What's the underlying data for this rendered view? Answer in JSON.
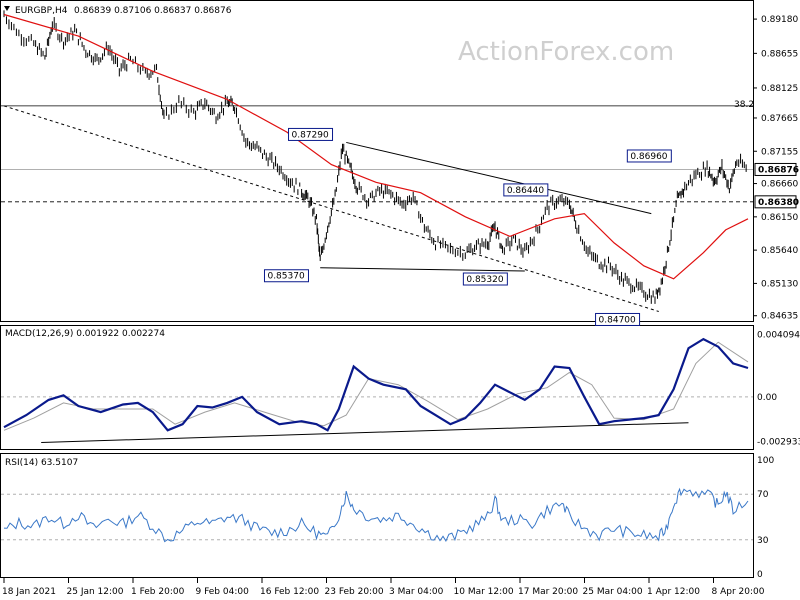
{
  "header": {
    "symbol": "EURGBP,H4",
    "ohlc": "0.86839 0.87106 0.86837 0.86876"
  },
  "watermark": "ActionForex.com",
  "colors": {
    "price": "#000000",
    "ma": "#e01010",
    "macd": "#0a1a8c",
    "signal": "#a0a0a0",
    "rsi": "#3a78c8",
    "label_border": "#0a1a8c"
  },
  "chart_data": [
    {
      "type": "candlestick",
      "title": "EURGBP,H4",
      "y_axis_ticks": [
        "0.89180",
        "0.88655",
        "0.88125",
        "0.87665",
        "0.87155",
        "0.86660",
        "0.86150",
        "0.85640",
        "0.85130",
        "0.84635"
      ],
      "ylim": [
        0.846,
        0.8935
      ],
      "current_price_label": "0.86876",
      "dashed_level_label": "0.86380",
      "x_tick_labels": [
        "18 Jan 2021",
        "25 Jan 12:00",
        "1 Feb 20:00",
        "9 Feb 04:00",
        "16 Feb 12:00",
        "23 Feb 20:00",
        "3 Mar 04:00",
        "10 Mar 12:00",
        "17 Mar 20:00",
        "25 Mar 04:00",
        "1 Apr 12:00",
        "8 Apr 20:00"
      ],
      "fib_label": "38.2",
      "fib_level": 0.8785,
      "annotations": [
        "0.87290",
        "0.85370",
        "0.86440",
        "0.85320",
        "0.84700",
        "0.86960"
      ],
      "annotation_points": [
        {
          "label": "0.87290",
          "t": 0.455,
          "price": 0.8729
        },
        {
          "label": "0.85370",
          "t": 0.42,
          "price": 0.8537
        },
        {
          "label": "0.86440",
          "t": 0.735,
          "price": 0.8644
        },
        {
          "label": "0.85320",
          "t": 0.69,
          "price": 0.8532
        },
        {
          "label": "0.84700",
          "t": 0.865,
          "price": 0.847
        },
        {
          "label": "0.86960",
          "t": 0.905,
          "price": 0.8696
        }
      ],
      "price_path": [
        [
          0.0,
          0.8925
        ],
        [
          0.02,
          0.8895
        ],
        [
          0.04,
          0.888
        ],
        [
          0.055,
          0.886
        ],
        [
          0.065,
          0.891
        ],
        [
          0.08,
          0.8885
        ],
        [
          0.095,
          0.89
        ],
        [
          0.11,
          0.887
        ],
        [
          0.125,
          0.8855
        ],
        [
          0.14,
          0.8875
        ],
        [
          0.155,
          0.884
        ],
        [
          0.17,
          0.8855
        ],
        [
          0.19,
          0.8835
        ],
        [
          0.205,
          0.884
        ],
        [
          0.215,
          0.8765
        ],
        [
          0.235,
          0.879
        ],
        [
          0.255,
          0.8775
        ],
        [
          0.27,
          0.879
        ],
        [
          0.285,
          0.877
        ],
        [
          0.3,
          0.879
        ],
        [
          0.31,
          0.8785
        ],
        [
          0.325,
          0.873
        ],
        [
          0.34,
          0.872
        ],
        [
          0.355,
          0.8705
        ],
        [
          0.37,
          0.869
        ],
        [
          0.385,
          0.867
        ],
        [
          0.4,
          0.8655
        ],
        [
          0.41,
          0.864
        ],
        [
          0.42,
          0.861
        ],
        [
          0.425,
          0.8548
        ],
        [
          0.435,
          0.86
        ],
        [
          0.445,
          0.8645
        ],
        [
          0.455,
          0.872
        ],
        [
          0.465,
          0.869
        ],
        [
          0.475,
          0.866
        ],
        [
          0.49,
          0.864
        ],
        [
          0.505,
          0.8655
        ],
        [
          0.52,
          0.865
        ],
        [
          0.535,
          0.8635
        ],
        [
          0.55,
          0.8645
        ],
        [
          0.565,
          0.86
        ],
        [
          0.58,
          0.8575
        ],
        [
          0.6,
          0.8565
        ],
        [
          0.62,
          0.856
        ],
        [
          0.635,
          0.857
        ],
        [
          0.65,
          0.8575
        ],
        [
          0.66,
          0.86
        ],
        [
          0.67,
          0.8565
        ],
        [
          0.685,
          0.858
        ],
        [
          0.7,
          0.856
        ],
        [
          0.715,
          0.859
        ],
        [
          0.73,
          0.863
        ],
        [
          0.745,
          0.864
        ],
        [
          0.76,
          0.8635
        ],
        [
          0.77,
          0.86
        ],
        [
          0.785,
          0.856
        ],
        [
          0.8,
          0.8545
        ],
        [
          0.815,
          0.854
        ],
        [
          0.83,
          0.852
        ],
        [
          0.845,
          0.851
        ],
        [
          0.86,
          0.85
        ],
        [
          0.875,
          0.849
        ],
        [
          0.885,
          0.852
        ],
        [
          0.895,
          0.858
        ],
        [
          0.905,
          0.864
        ],
        [
          0.915,
          0.866
        ],
        [
          0.93,
          0.868
        ],
        [
          0.945,
          0.869
        ],
        [
          0.955,
          0.867
        ],
        [
          0.965,
          0.869
        ],
        [
          0.975,
          0.866
        ],
        [
          0.985,
          0.87
        ],
        [
          1.0,
          0.8688
        ]
      ],
      "moving_average": [
        [
          0.0,
          0.8925
        ],
        [
          0.1,
          0.8892
        ],
        [
          0.2,
          0.8838
        ],
        [
          0.3,
          0.8795
        ],
        [
          0.38,
          0.8745
        ],
        [
          0.44,
          0.8695
        ],
        [
          0.5,
          0.8668
        ],
        [
          0.56,
          0.8652
        ],
        [
          0.62,
          0.8615
        ],
        [
          0.68,
          0.8585
        ],
        [
          0.74,
          0.8612
        ],
        [
          0.78,
          0.862
        ],
        [
          0.82,
          0.8575
        ],
        [
          0.86,
          0.854
        ],
        [
          0.9,
          0.852
        ],
        [
          0.94,
          0.856
        ],
        [
          0.97,
          0.8595
        ],
        [
          1.0,
          0.8612
        ]
      ],
      "trendlines": [
        {
          "from": [
            0.0,
            0.8785
          ],
          "to": [
            0.88,
            0.847
          ],
          "style": "dotted"
        },
        {
          "from": [
            0.46,
            0.8729
          ],
          "to": [
            0.87,
            0.862
          ],
          "style": "solid"
        },
        {
          "from": [
            0.425,
            0.8537
          ],
          "to": [
            0.7,
            0.8532
          ],
          "style": "solid"
        }
      ]
    },
    {
      "type": "line",
      "title": "MACD(12,26,9) 0.001922 0.002274",
      "y_axis_ticks": [
        "0.004094",
        "0.00",
        "-0.002933"
      ],
      "ylim": [
        -0.0033,
        0.0044
      ],
      "macd": [
        [
          0.0,
          -0.002
        ],
        [
          0.03,
          -0.0012
        ],
        [
          0.06,
          -0.0002
        ],
        [
          0.08,
          0.0001
        ],
        [
          0.1,
          -0.0006
        ],
        [
          0.13,
          -0.001
        ],
        [
          0.16,
          -0.0005
        ],
        [
          0.18,
          -0.0004
        ],
        [
          0.2,
          -0.001
        ],
        [
          0.22,
          -0.0022
        ],
        [
          0.24,
          -0.0018
        ],
        [
          0.26,
          -0.0006
        ],
        [
          0.28,
          -0.0007
        ],
        [
          0.3,
          -0.0004
        ],
        [
          0.32,
          0.0
        ],
        [
          0.34,
          -0.001
        ],
        [
          0.37,
          -0.0018
        ],
        [
          0.4,
          -0.0016
        ],
        [
          0.42,
          -0.0018
        ],
        [
          0.435,
          -0.0022
        ],
        [
          0.45,
          -0.0008
        ],
        [
          0.47,
          0.002
        ],
        [
          0.49,
          0.0012
        ],
        [
          0.51,
          0.0008
        ],
        [
          0.54,
          0.0005
        ],
        [
          0.56,
          -0.0006
        ],
        [
          0.58,
          -0.0012
        ],
        [
          0.6,
          -0.0018
        ],
        [
          0.62,
          -0.0014
        ],
        [
          0.64,
          -0.0004
        ],
        [
          0.66,
          0.0008
        ],
        [
          0.68,
          0.0003
        ],
        [
          0.7,
          -0.0002
        ],
        [
          0.72,
          0.0005
        ],
        [
          0.74,
          0.002
        ],
        [
          0.76,
          0.0019
        ],
        [
          0.78,
          0.0
        ],
        [
          0.8,
          -0.0018
        ],
        [
          0.82,
          -0.0016
        ],
        [
          0.84,
          -0.0015
        ],
        [
          0.86,
          -0.0014
        ],
        [
          0.88,
          -0.0012
        ],
        [
          0.9,
          0.0005
        ],
        [
          0.92,
          0.0032
        ],
        [
          0.94,
          0.0038
        ],
        [
          0.96,
          0.0033
        ],
        [
          0.98,
          0.0022
        ],
        [
          1.0,
          0.0019
        ]
      ],
      "signal": [
        [
          0.0,
          -0.0022
        ],
        [
          0.04,
          -0.0014
        ],
        [
          0.08,
          -0.0004
        ],
        [
          0.12,
          -0.0008
        ],
        [
          0.16,
          -0.0008
        ],
        [
          0.2,
          -0.0008
        ],
        [
          0.23,
          -0.0018
        ],
        [
          0.27,
          -0.001
        ],
        [
          0.31,
          -0.0004
        ],
        [
          0.35,
          -0.001
        ],
        [
          0.39,
          -0.0016
        ],
        [
          0.43,
          -0.0019
        ],
        [
          0.46,
          -0.0012
        ],
        [
          0.49,
          0.0012
        ],
        [
          0.53,
          0.0008
        ],
        [
          0.57,
          -0.0003
        ],
        [
          0.61,
          -0.0015
        ],
        [
          0.65,
          -0.0008
        ],
        [
          0.69,
          0.0002
        ],
        [
          0.73,
          0.0006
        ],
        [
          0.76,
          0.0016
        ],
        [
          0.79,
          0.0008
        ],
        [
          0.82,
          -0.0014
        ],
        [
          0.86,
          -0.0015
        ],
        [
          0.9,
          -0.0008
        ],
        [
          0.93,
          0.0022
        ],
        [
          0.96,
          0.0036
        ],
        [
          1.0,
          0.0023
        ]
      ],
      "trendline": {
        "from": [
          0.05,
          -0.003
        ],
        "to": [
          0.92,
          -0.0017
        ]
      }
    },
    {
      "type": "line",
      "title": "RSI(14) 63.5107",
      "y_axis_ticks": [
        "100",
        "70",
        "30",
        "0"
      ],
      "ylim": [
        0,
        100
      ],
      "levels": [
        70,
        30
      ],
      "rsi": [
        [
          0.0,
          38
        ],
        [
          0.02,
          45
        ],
        [
          0.04,
          42
        ],
        [
          0.06,
          50
        ],
        [
          0.08,
          44
        ],
        [
          0.1,
          52
        ],
        [
          0.12,
          40
        ],
        [
          0.14,
          48
        ],
        [
          0.16,
          44
        ],
        [
          0.18,
          52
        ],
        [
          0.2,
          42
        ],
        [
          0.22,
          30
        ],
        [
          0.24,
          38
        ],
        [
          0.26,
          46
        ],
        [
          0.28,
          44
        ],
        [
          0.3,
          50
        ],
        [
          0.32,
          48
        ],
        [
          0.34,
          40
        ],
        [
          0.36,
          36
        ],
        [
          0.38,
          38
        ],
        [
          0.4,
          44
        ],
        [
          0.42,
          36
        ],
        [
          0.435,
          32
        ],
        [
          0.45,
          52
        ],
        [
          0.46,
          70
        ],
        [
          0.47,
          58
        ],
        [
          0.49,
          50
        ],
        [
          0.51,
          48
        ],
        [
          0.53,
          52
        ],
        [
          0.55,
          44
        ],
        [
          0.57,
          36
        ],
        [
          0.59,
          30
        ],
        [
          0.61,
          34
        ],
        [
          0.63,
          42
        ],
        [
          0.65,
          50
        ],
        [
          0.66,
          65
        ],
        [
          0.67,
          46
        ],
        [
          0.69,
          48
        ],
        [
          0.71,
          44
        ],
        [
          0.73,
          56
        ],
        [
          0.75,
          62
        ],
        [
          0.76,
          50
        ],
        [
          0.78,
          40
        ],
        [
          0.8,
          34
        ],
        [
          0.82,
          40
        ],
        [
          0.84,
          36
        ],
        [
          0.86,
          34
        ],
        [
          0.88,
          32
        ],
        [
          0.89,
          40
        ],
        [
          0.9,
          62
        ],
        [
          0.91,
          74
        ],
        [
          0.93,
          72
        ],
        [
          0.95,
          68
        ],
        [
          0.96,
          60
        ],
        [
          0.97,
          72
        ],
        [
          0.98,
          56
        ],
        [
          1.0,
          64
        ]
      ]
    }
  ]
}
